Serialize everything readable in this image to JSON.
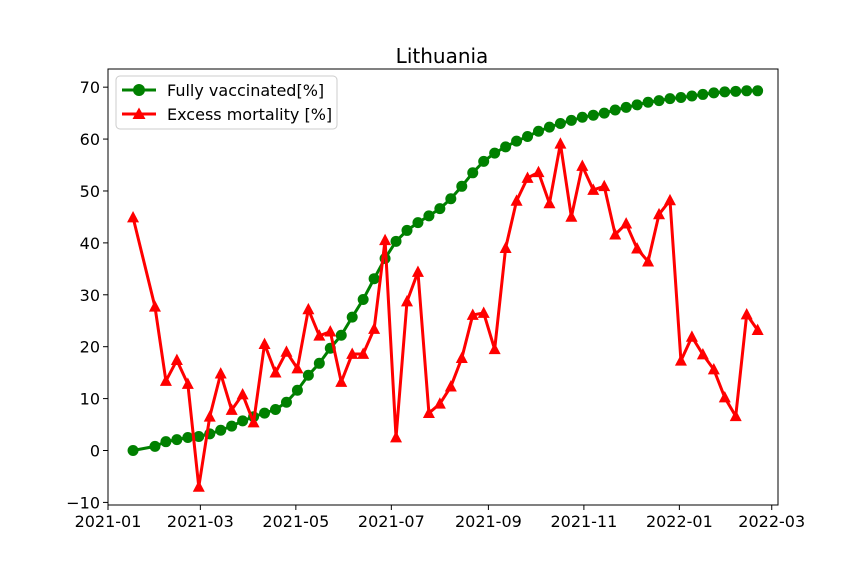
{
  "chart_data": {
    "type": "line",
    "title": "Lithuania",
    "xlabel": "",
    "ylabel": "",
    "xlim": [
      "2021-01-01",
      "2022-03-05"
    ],
    "ylim": [
      -10.5,
      73.5
    ],
    "x_ticks": [
      "2021-01",
      "2021-03",
      "2021-05",
      "2021-07",
      "2021-09",
      "2021-11",
      "2022-01",
      "2022-03"
    ],
    "y_ticks": [
      -10,
      0,
      10,
      20,
      30,
      40,
      50,
      60,
      70
    ],
    "grid": false,
    "legend_position": "upper-left",
    "series": [
      {
        "name": "Fully vaccinated[%]",
        "color": "#008000",
        "marker": "circle",
        "points": [
          [
            "2021-01-17",
            0.0
          ],
          [
            "2021-01-31",
            0.8
          ],
          [
            "2021-02-07",
            1.7
          ],
          [
            "2021-02-14",
            2.1
          ],
          [
            "2021-02-21",
            2.5
          ],
          [
            "2021-02-28",
            2.7
          ],
          [
            "2021-03-07",
            3.2
          ],
          [
            "2021-03-14",
            3.9
          ],
          [
            "2021-03-21",
            4.7
          ],
          [
            "2021-03-28",
            5.7
          ],
          [
            "2021-04-04",
            6.5
          ],
          [
            "2021-04-11",
            7.2
          ],
          [
            "2021-04-18",
            7.9
          ],
          [
            "2021-04-25",
            9.3
          ],
          [
            "2021-05-02",
            11.6
          ],
          [
            "2021-05-09",
            14.5
          ],
          [
            "2021-05-16",
            16.8
          ],
          [
            "2021-05-23",
            19.7
          ],
          [
            "2021-05-30",
            22.2
          ],
          [
            "2021-06-06",
            25.7
          ],
          [
            "2021-06-13",
            29.1
          ],
          [
            "2021-06-20",
            33.1
          ],
          [
            "2021-06-27",
            37.0
          ],
          [
            "2021-07-04",
            40.3
          ],
          [
            "2021-07-11",
            42.4
          ],
          [
            "2021-07-18",
            43.9
          ],
          [
            "2021-07-25",
            45.2
          ],
          [
            "2021-08-01",
            46.6
          ],
          [
            "2021-08-08",
            48.5
          ],
          [
            "2021-08-15",
            50.9
          ],
          [
            "2021-08-22",
            53.5
          ],
          [
            "2021-08-29",
            55.7
          ],
          [
            "2021-09-05",
            57.3
          ],
          [
            "2021-09-12",
            58.5
          ],
          [
            "2021-09-19",
            59.6
          ],
          [
            "2021-09-26",
            60.5
          ],
          [
            "2021-10-03",
            61.5
          ],
          [
            "2021-10-10",
            62.3
          ],
          [
            "2021-10-17",
            63.0
          ],
          [
            "2021-10-24",
            63.6
          ],
          [
            "2021-10-31",
            64.2
          ],
          [
            "2021-11-07",
            64.6
          ],
          [
            "2021-11-14",
            65.0
          ],
          [
            "2021-11-21",
            65.6
          ],
          [
            "2021-11-28",
            66.1
          ],
          [
            "2021-12-05",
            66.6
          ],
          [
            "2021-12-12",
            67.1
          ],
          [
            "2021-12-19",
            67.4
          ],
          [
            "2021-12-26",
            67.8
          ],
          [
            "2022-01-02",
            68.0
          ],
          [
            "2022-01-09",
            68.3
          ],
          [
            "2022-01-16",
            68.6
          ],
          [
            "2022-01-23",
            68.9
          ],
          [
            "2022-01-30",
            69.1
          ],
          [
            "2022-02-06",
            69.2
          ],
          [
            "2022-02-13",
            69.3
          ],
          [
            "2022-02-20",
            69.3
          ]
        ]
      },
      {
        "name": "Excess mortality [%]",
        "color": "#ff0000",
        "marker": "triangle",
        "points": [
          [
            "2021-01-17",
            44.9
          ],
          [
            "2021-01-31",
            27.7
          ],
          [
            "2021-02-07",
            13.4
          ],
          [
            "2021-02-14",
            17.4
          ],
          [
            "2021-02-21",
            12.8
          ],
          [
            "2021-02-28",
            -7.0
          ],
          [
            "2021-03-07",
            6.5
          ],
          [
            "2021-03-14",
            14.8
          ],
          [
            "2021-03-21",
            7.8
          ],
          [
            "2021-03-28",
            10.8
          ],
          [
            "2021-04-04",
            5.4
          ],
          [
            "2021-04-11",
            20.5
          ],
          [
            "2021-04-18",
            15.0
          ],
          [
            "2021-04-25",
            19.0
          ],
          [
            "2021-05-02",
            15.8
          ],
          [
            "2021-05-09",
            27.2
          ],
          [
            "2021-05-16",
            22.1
          ],
          [
            "2021-05-23",
            22.9
          ],
          [
            "2021-05-30",
            13.2
          ],
          [
            "2021-06-06",
            18.6
          ],
          [
            "2021-06-13",
            18.6
          ],
          [
            "2021-06-20",
            23.4
          ],
          [
            "2021-06-27",
            40.5
          ],
          [
            "2021-07-04",
            2.5
          ],
          [
            "2021-07-11",
            28.7
          ],
          [
            "2021-07-18",
            34.4
          ],
          [
            "2021-07-25",
            7.2
          ],
          [
            "2021-08-01",
            9.0
          ],
          [
            "2021-08-08",
            12.3
          ],
          [
            "2021-08-15",
            17.8
          ],
          [
            "2021-08-22",
            26.1
          ],
          [
            "2021-08-29",
            26.5
          ],
          [
            "2021-09-05",
            19.5
          ],
          [
            "2021-09-12",
            39.0
          ],
          [
            "2021-09-19",
            48.1
          ],
          [
            "2021-09-26",
            52.5
          ],
          [
            "2021-10-03",
            53.6
          ],
          [
            "2021-10-10",
            47.6
          ],
          [
            "2021-10-17",
            59.1
          ],
          [
            "2021-10-24",
            45.0
          ],
          [
            "2021-10-31",
            54.8
          ],
          [
            "2021-11-07",
            50.2
          ],
          [
            "2021-11-14",
            50.9
          ],
          [
            "2021-11-21",
            41.6
          ],
          [
            "2021-11-28",
            43.7
          ],
          [
            "2021-12-05",
            38.9
          ],
          [
            "2021-12-12",
            36.4
          ],
          [
            "2021-12-19",
            45.5
          ],
          [
            "2021-12-26",
            48.2
          ],
          [
            "2022-01-02",
            17.3
          ],
          [
            "2022-01-09",
            21.9
          ],
          [
            "2022-01-16",
            18.5
          ],
          [
            "2022-01-23",
            15.6
          ],
          [
            "2022-01-30",
            10.2
          ],
          [
            "2022-02-06",
            6.6
          ],
          [
            "2022-02-13",
            26.2
          ],
          [
            "2022-02-20",
            23.2
          ]
        ]
      }
    ]
  }
}
